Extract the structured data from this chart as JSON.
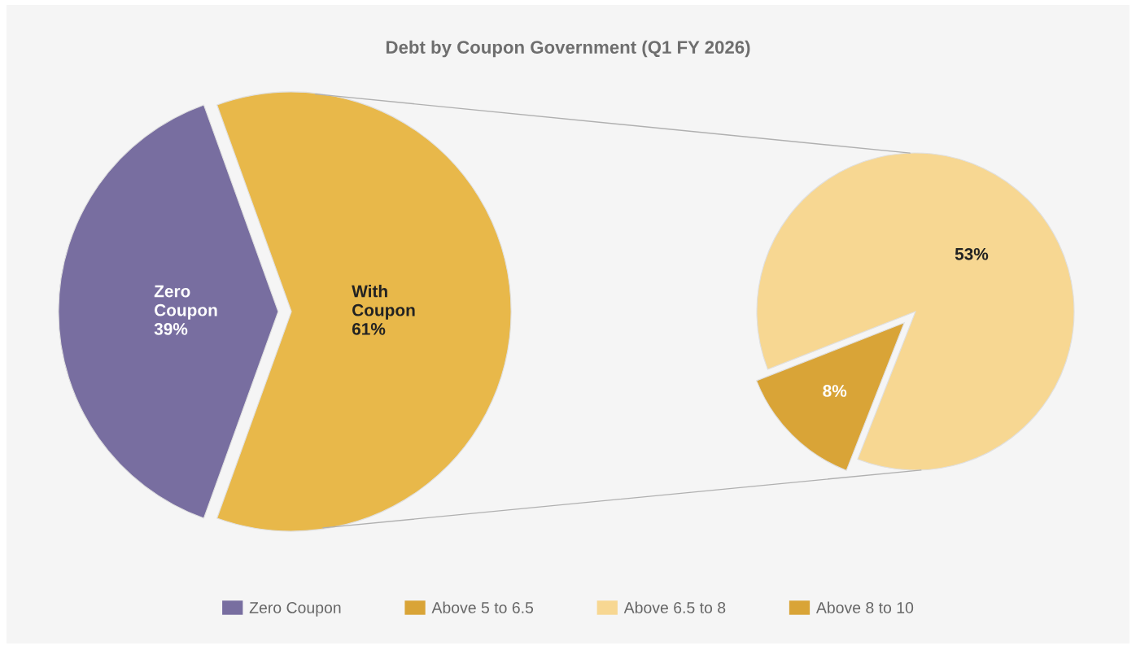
{
  "chart_data": [
    {
      "type": "pie",
      "title": "Debt by Coupon Government (Q1 FY 2026)",
      "categories": [
        "Zero Coupon",
        "With Coupon"
      ],
      "values": [
        39,
        61
      ],
      "colors": [
        "#786ea0",
        "#e8b84a"
      ],
      "value_labels": [
        "39%",
        "61%"
      ],
      "legend": "bottom"
    },
    {
      "type": "pie",
      "categories": [
        "Above 5 to 6.5",
        "Above 6.5 to 8",
        "Above 8 to 10"
      ],
      "values": [
        8,
        53,
        0
      ],
      "colors": [
        "#d9a437",
        "#f7d792",
        "#d9a437"
      ],
      "value_labels": [
        "8%",
        "53%",
        null
      ],
      "legend": "bottom"
    }
  ]
}
